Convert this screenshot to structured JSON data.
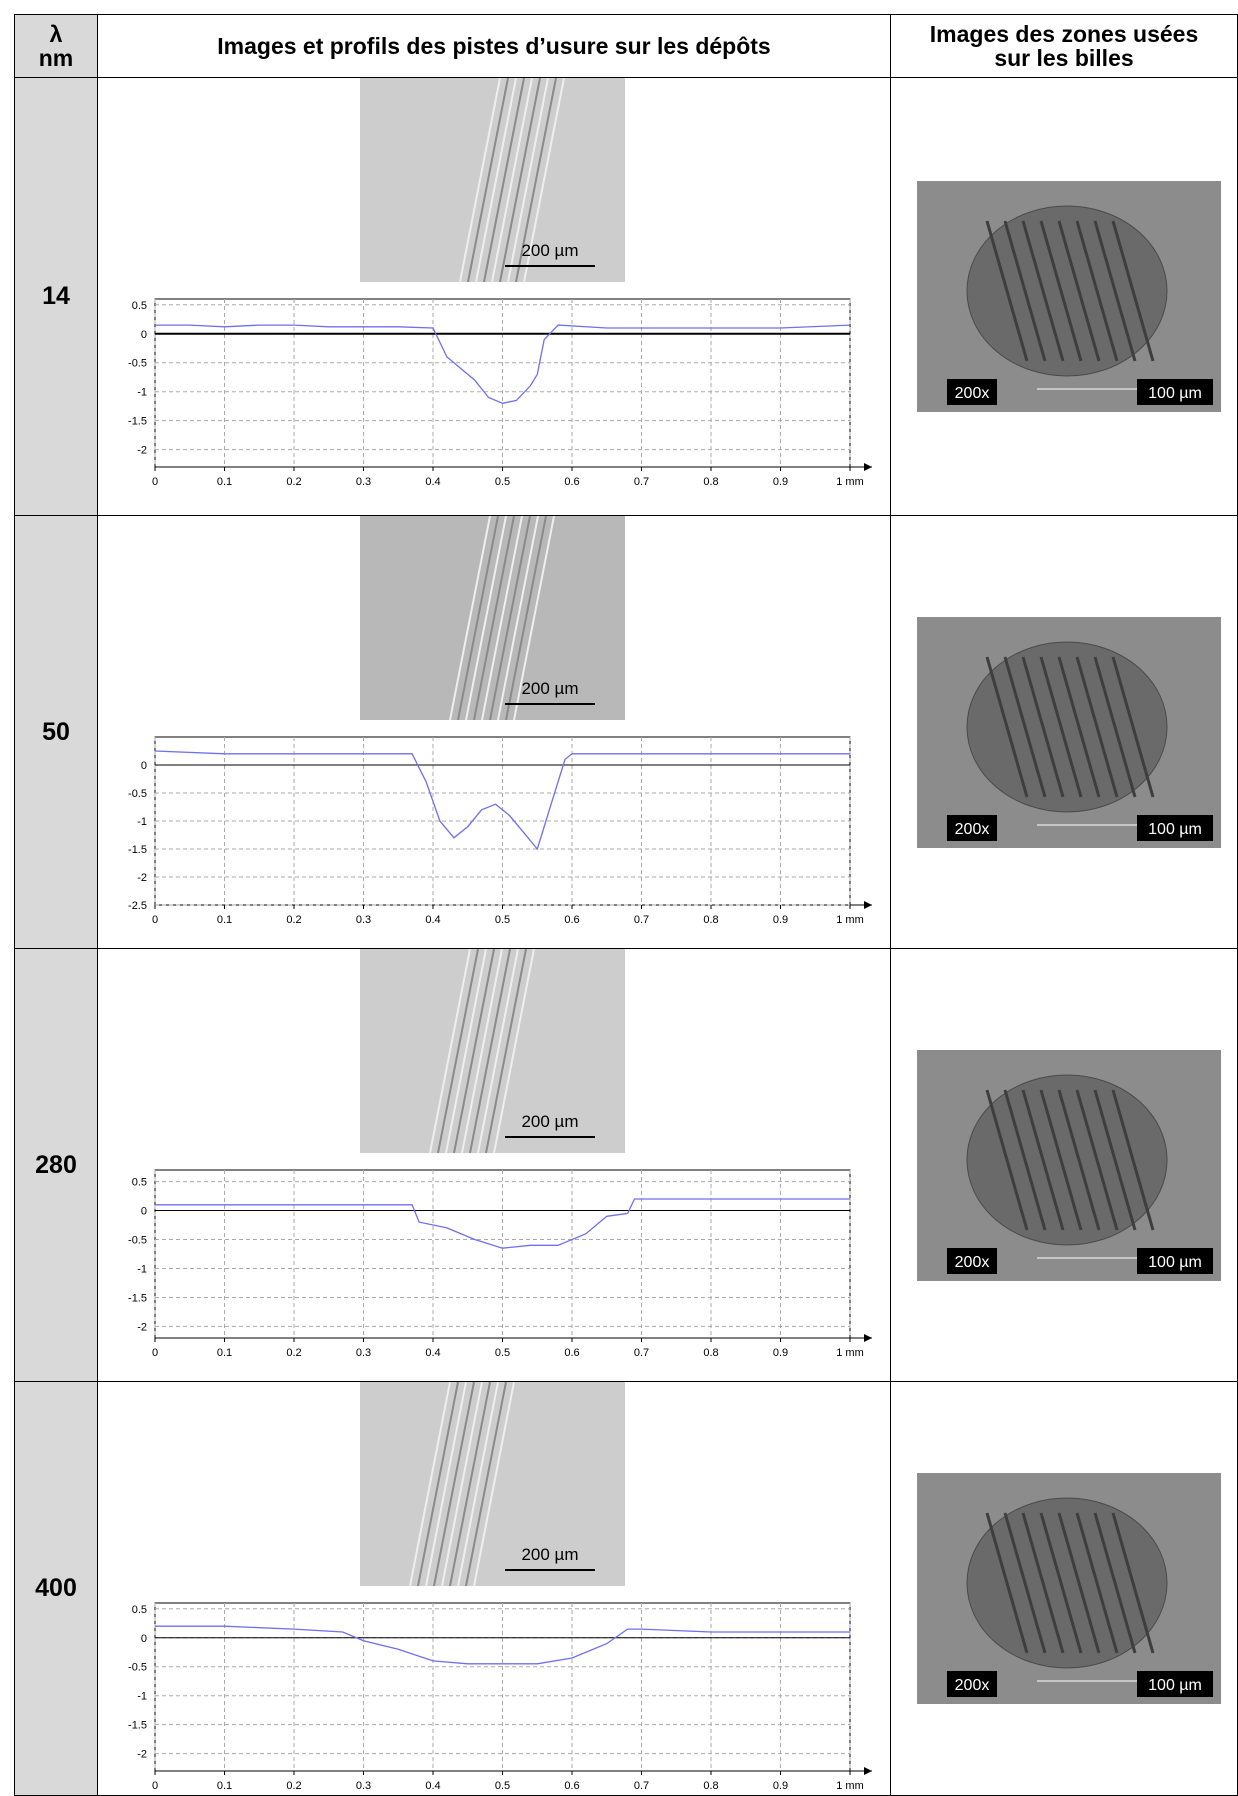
{
  "table": {
    "header": [
      [
        "λ",
        "nm"
      ],
      "Images et profils des pistes d’usure sur les dépôts",
      [
        "Images des zones usées",
        "sur les billes"
      ]
    ],
    "rows": [
      {
        "lambda": "14",
        "track_scale": "200 µm",
        "ball_magnification": "200x",
        "ball_scale": "100 µm",
        "profile": {
          "type": "line",
          "color": "#6f6ff0",
          "xlim": [
            0,
            1
          ],
          "ylim": [
            -2.3,
            0.6
          ],
          "xticks": [
            0,
            0.1,
            0.2,
            0.3,
            0.4,
            0.5,
            0.6,
            0.7,
            0.8,
            0.9,
            {
              "value": 1,
              "label": "1 mm"
            }
          ],
          "yticks": [
            0.5,
            0,
            -0.5,
            -1,
            -1.5,
            -2
          ],
          "x": [
            0,
            0.05,
            0.1,
            0.15,
            0.2,
            0.25,
            0.3,
            0.35,
            0.4,
            0.42,
            0.44,
            0.46,
            0.48,
            0.5,
            0.52,
            0.54,
            0.55,
            0.56,
            0.58,
            0.65,
            0.7,
            0.8,
            0.9,
            1
          ],
          "values": [
            0.15,
            0.15,
            0.12,
            0.15,
            0.15,
            0.12,
            0.12,
            0.12,
            0.1,
            -0.4,
            -0.6,
            -0.8,
            -1.1,
            -1.2,
            -1.15,
            -0.9,
            -0.7,
            -0.1,
            0.15,
            0.1,
            0.1,
            0.1,
            0.1,
            0.15
          ]
        }
      },
      {
        "lambda": "50",
        "track_scale": "200 µm",
        "ball_magnification": "200x",
        "ball_scale": "100 µm",
        "profile": {
          "type": "line",
          "color": "#6f6ff0",
          "xlim": [
            0,
            1
          ],
          "ylim": [
            -2.5,
            0.5
          ],
          "xticks": [
            0,
            0.1,
            0.2,
            0.3,
            0.4,
            0.5,
            0.6,
            0.7,
            0.8,
            0.9,
            {
              "value": 1,
              "label": "1 mm"
            }
          ],
          "yticks": [
            0,
            -0.5,
            -1,
            -1.5,
            -2,
            -2.5
          ],
          "x": [
            0,
            0.1,
            0.2,
            0.3,
            0.37,
            0.39,
            0.41,
            0.43,
            0.45,
            0.47,
            0.49,
            0.51,
            0.53,
            0.55,
            0.57,
            0.59,
            0.6,
            0.7,
            0.8,
            0.9,
            1
          ],
          "values": [
            0.25,
            0.2,
            0.2,
            0.2,
            0.2,
            -0.3,
            -1.0,
            -1.3,
            -1.1,
            -0.8,
            -0.7,
            -0.9,
            -1.2,
            -1.5,
            -0.7,
            0.1,
            0.2,
            0.2,
            0.2,
            0.2,
            0.2
          ]
        }
      },
      {
        "lambda": "280",
        "track_scale": "200 µm",
        "ball_magnification": "200x",
        "ball_scale": "100 µm",
        "profile": {
          "type": "line",
          "color": "#6f6ff0",
          "xlim": [
            0,
            1
          ],
          "ylim": [
            -2.2,
            0.7
          ],
          "xticks": [
            0,
            0.1,
            0.2,
            0.3,
            0.4,
            0.5,
            0.6,
            0.7,
            0.8,
            0.9,
            {
              "value": 1,
              "label": "1 mm"
            }
          ],
          "yticks": [
            0.5,
            0,
            -0.5,
            -1,
            -1.5,
            -2
          ],
          "x": [
            0,
            0.1,
            0.2,
            0.3,
            0.37,
            0.38,
            0.42,
            0.46,
            0.5,
            0.54,
            0.58,
            0.62,
            0.65,
            0.68,
            0.69,
            0.75,
            0.8,
            0.9,
            1
          ],
          "values": [
            0.1,
            0.1,
            0.1,
            0.1,
            0.1,
            -0.2,
            -0.3,
            -0.5,
            -0.65,
            -0.6,
            -0.6,
            -0.4,
            -0.1,
            -0.05,
            0.2,
            0.2,
            0.2,
            0.2,
            0.2
          ]
        }
      },
      {
        "lambda": "400",
        "track_scale": "200 µm",
        "ball_magnification": "200x",
        "ball_scale": "100 µm",
        "profile": {
          "type": "line",
          "color": "#6f6ff0",
          "xlim": [
            0,
            1
          ],
          "ylim": [
            -2.3,
            0.6
          ],
          "xticks": [
            0,
            0.1,
            0.2,
            0.3,
            0.4,
            0.5,
            0.6,
            0.7,
            0.8,
            0.9,
            {
              "value": 1,
              "label": "1 mm"
            }
          ],
          "yticks": [
            0.5,
            0,
            -0.5,
            -1,
            -1.5,
            -2
          ],
          "x": [
            0,
            0.1,
            0.2,
            0.27,
            0.3,
            0.35,
            0.4,
            0.45,
            0.5,
            0.55,
            0.6,
            0.65,
            0.68,
            0.7,
            0.8,
            0.9,
            1
          ],
          "values": [
            0.2,
            0.2,
            0.15,
            0.1,
            -0.05,
            -0.2,
            -0.4,
            -0.45,
            -0.45,
            -0.45,
            -0.35,
            -0.1,
            0.15,
            0.15,
            0.1,
            0.1,
            0.1
          ]
        }
      }
    ]
  }
}
